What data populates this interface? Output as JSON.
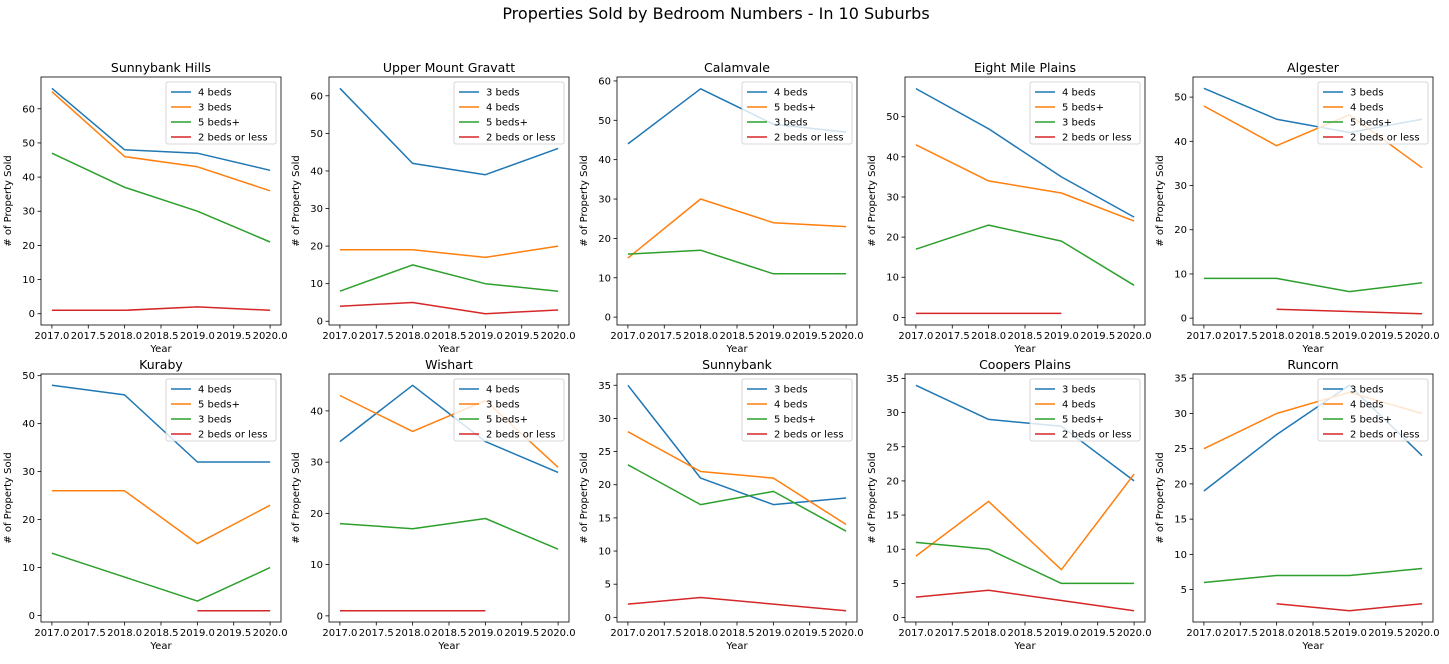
{
  "figure_title": "Properties Sold by Bedroom Numbers - In 10 Suburbs",
  "colors": {
    "C0": "#1f77b4",
    "C1": "#ff7f0e",
    "C2": "#2ca02c",
    "C3": "#d62728"
  },
  "chart_data": [
    {
      "type": "line",
      "title": "Sunnybank Hills",
      "xlabel": "Year",
      "ylabel": "# of Property Sold",
      "x": [
        2017,
        2018,
        2019,
        2020
      ],
      "xlim": [
        2016.85,
        2020.15
      ],
      "ylim": [
        -3.3,
        69.3
      ],
      "xticks": [
        "2017.0",
        "2017.5",
        "2018.0",
        "2018.5",
        "2019.0",
        "2019.5",
        "2020.0"
      ],
      "yticks": [
        0,
        10,
        20,
        30,
        40,
        50,
        60
      ],
      "legend": "top-right",
      "series": [
        {
          "name": "4 beds",
          "color": "#1f77b4",
          "values": [
            66,
            48,
            47,
            42
          ]
        },
        {
          "name": "3 beds",
          "color": "#ff7f0e",
          "values": [
            65,
            46,
            43,
            36
          ]
        },
        {
          "name": "5 beds+",
          "color": "#2ca02c",
          "values": [
            47,
            37,
            30,
            21
          ]
        },
        {
          "name": "2 beds or less",
          "color": "#d62728",
          "values": [
            1,
            1,
            2,
            1
          ]
        }
      ]
    },
    {
      "type": "line",
      "title": "Upper Mount Gravatt",
      "xlabel": "Year",
      "ylabel": "# of Property Sold",
      "x": [
        2017,
        2018,
        2019,
        2020
      ],
      "xlim": [
        2016.85,
        2020.15
      ],
      "ylim": [
        -1.0,
        65.0
      ],
      "xticks": [
        "2017.0",
        "2017.5",
        "2018.0",
        "2018.5",
        "2019.0",
        "2019.5",
        "2020.0"
      ],
      "yticks": [
        0,
        10,
        20,
        30,
        40,
        50,
        60
      ],
      "legend": "top-right",
      "series": [
        {
          "name": "3 beds",
          "color": "#1f77b4",
          "values": [
            62,
            42,
            39,
            46
          ]
        },
        {
          "name": "4 beds",
          "color": "#ff7f0e",
          "values": [
            19,
            19,
            17,
            20
          ]
        },
        {
          "name": "5 beds+",
          "color": "#2ca02c",
          "values": [
            8,
            15,
            10,
            8
          ]
        },
        {
          "name": "2 beds or less",
          "color": "#d62728",
          "values": [
            4,
            5,
            2,
            3
          ]
        }
      ]
    },
    {
      "type": "line",
      "title": "Calamvale",
      "xlabel": "Year",
      "ylabel": "# of Property Sold",
      "x": [
        2017,
        2018,
        2019,
        2020
      ],
      "xlim": [
        2016.85,
        2020.15
      ],
      "ylim": [
        -2.0,
        61.0
      ],
      "xticks": [
        "2017.0",
        "2017.5",
        "2018.0",
        "2018.5",
        "2019.0",
        "2019.5",
        "2020.0"
      ],
      "yticks": [
        0,
        10,
        20,
        30,
        40,
        50,
        60
      ],
      "legend": "top-right",
      "series": [
        {
          "name": "4 beds",
          "color": "#1f77b4",
          "values": [
            44,
            58,
            49,
            47
          ]
        },
        {
          "name": "5 beds+",
          "color": "#ff7f0e",
          "values": [
            15,
            30,
            24,
            23
          ]
        },
        {
          "name": "3 beds",
          "color": "#2ca02c",
          "values": [
            16,
            17,
            11,
            11
          ]
        },
        {
          "name": "2 beds or less",
          "color": "#d62728",
          "values": [
            null,
            null,
            null,
            null
          ]
        }
      ]
    },
    {
      "type": "line",
      "title": "Eight Mile Plains",
      "xlabel": "Year",
      "ylabel": "# of Property Sold",
      "x": [
        2017,
        2018,
        2019,
        2020
      ],
      "xlim": [
        2016.85,
        2020.15
      ],
      "ylim": [
        -1.9,
        59.9
      ],
      "xticks": [
        "2017.0",
        "2017.5",
        "2018.0",
        "2018.5",
        "2019.0",
        "2019.5",
        "2020.0"
      ],
      "yticks": [
        0,
        10,
        20,
        30,
        40,
        50
      ],
      "legend": "top-right",
      "series": [
        {
          "name": "4 beds",
          "color": "#1f77b4",
          "values": [
            57,
            47,
            35,
            25
          ]
        },
        {
          "name": "5 beds+",
          "color": "#ff7f0e",
          "values": [
            43,
            34,
            31,
            24
          ]
        },
        {
          "name": "3 beds",
          "color": "#2ca02c",
          "values": [
            17,
            23,
            19,
            8
          ]
        },
        {
          "name": "2 beds or less",
          "color": "#d62728",
          "values": [
            1,
            1,
            1,
            null
          ]
        }
      ]
    },
    {
      "type": "line",
      "title": "Algester",
      "xlabel": "Year",
      "ylabel": "# of Property Sold",
      "x": [
        2017,
        2018,
        2019,
        2020
      ],
      "xlim": [
        2016.85,
        2020.15
      ],
      "ylim": [
        -1.55,
        54.55
      ],
      "xticks": [
        "2017.0",
        "2017.5",
        "2018.0",
        "2018.5",
        "2019.0",
        "2019.5",
        "2020.0"
      ],
      "yticks": [
        0,
        10,
        20,
        30,
        40,
        50
      ],
      "legend": "top-right",
      "series": [
        {
          "name": "3 beds",
          "color": "#1f77b4",
          "values": [
            52,
            45,
            42,
            45
          ]
        },
        {
          "name": "4 beds",
          "color": "#ff7f0e",
          "values": [
            48,
            39,
            46,
            34
          ]
        },
        {
          "name": "5 beds+",
          "color": "#2ca02c",
          "values": [
            9,
            9,
            6,
            8
          ]
        },
        {
          "name": "2 beds or less",
          "color": "#d62728",
          "values": [
            null,
            2,
            1.5,
            1
          ]
        }
      ]
    },
    {
      "type": "line",
      "title": "Kuraby",
      "xlabel": "Year",
      "ylabel": "# of Property Sold",
      "x": [
        2017,
        2018,
        2019,
        2020
      ],
      "xlim": [
        2016.85,
        2020.15
      ],
      "ylim": [
        -1.35,
        50.35
      ],
      "xticks": [
        "2017.0",
        "2017.5",
        "2018.0",
        "2018.5",
        "2019.0",
        "2019.5",
        "2020.0"
      ],
      "yticks": [
        0,
        10,
        20,
        30,
        40,
        50
      ],
      "legend": "top-right",
      "series": [
        {
          "name": "4 beds",
          "color": "#1f77b4",
          "values": [
            48,
            46,
            32,
            32
          ]
        },
        {
          "name": "5 beds+",
          "color": "#ff7f0e",
          "values": [
            26,
            26,
            15,
            23
          ]
        },
        {
          "name": "3 beds",
          "color": "#2ca02c",
          "values": [
            13,
            8,
            3,
            10
          ]
        },
        {
          "name": "2 beds or less",
          "color": "#d62728",
          "values": [
            null,
            null,
            1,
            1
          ]
        }
      ]
    },
    {
      "type": "line",
      "title": "Wishart",
      "xlabel": "Year",
      "ylabel": "# of Property Sold",
      "x": [
        2017,
        2018,
        2019,
        2020
      ],
      "xlim": [
        2016.85,
        2020.15
      ],
      "ylim": [
        -1.2,
        47.2
      ],
      "xticks": [
        "2017.0",
        "2017.5",
        "2018.0",
        "2018.5",
        "2019.0",
        "2019.5",
        "2020.0"
      ],
      "yticks": [
        0,
        10,
        20,
        30,
        40
      ],
      "legend": "top-right",
      "series": [
        {
          "name": "4 beds",
          "color": "#1f77b4",
          "values": [
            34,
            45,
            34,
            28
          ]
        },
        {
          "name": "3 beds",
          "color": "#ff7f0e",
          "values": [
            43,
            36,
            42,
            29
          ]
        },
        {
          "name": "5 beds+",
          "color": "#2ca02c",
          "values": [
            18,
            17,
            19,
            13
          ]
        },
        {
          "name": "2 beds or less",
          "color": "#d62728",
          "values": [
            1,
            1,
            1,
            null
          ]
        }
      ]
    },
    {
      "type": "line",
      "title": "Sunnybank",
      "xlabel": "Year",
      "ylabel": "# of Property Sold",
      "x": [
        2017,
        2018,
        2019,
        2020
      ],
      "xlim": [
        2016.85,
        2020.15
      ],
      "ylim": [
        -0.7,
        36.7
      ],
      "xticks": [
        "2017.0",
        "2017.5",
        "2018.0",
        "2018.5",
        "2019.0",
        "2019.5",
        "2020.0"
      ],
      "yticks": [
        0,
        5,
        10,
        15,
        20,
        25,
        30,
        35
      ],
      "legend": "top-right",
      "series": [
        {
          "name": "3 beds",
          "color": "#1f77b4",
          "values": [
            35,
            21,
            17,
            18
          ]
        },
        {
          "name": "4 beds",
          "color": "#ff7f0e",
          "values": [
            28,
            22,
            21,
            14
          ]
        },
        {
          "name": "5 beds+",
          "color": "#2ca02c",
          "values": [
            23,
            17,
            19,
            13
          ]
        },
        {
          "name": "2 beds or less",
          "color": "#d62728",
          "values": [
            2,
            3,
            2,
            1
          ]
        }
      ]
    },
    {
      "type": "line",
      "title": "Coopers Plains",
      "xlabel": "Year",
      "ylabel": "# of Property Sold",
      "x": [
        2017,
        2018,
        2019,
        2020
      ],
      "xlim": [
        2016.85,
        2020.15
      ],
      "ylim": [
        -0.65,
        35.65
      ],
      "xticks": [
        "2017.0",
        "2017.5",
        "2018.0",
        "2018.5",
        "2019.0",
        "2019.5",
        "2020.0"
      ],
      "yticks": [
        0,
        5,
        10,
        15,
        20,
        25,
        30,
        35
      ],
      "legend": "top-right",
      "series": [
        {
          "name": "3 beds",
          "color": "#1f77b4",
          "values": [
            34,
            29,
            28,
            20
          ]
        },
        {
          "name": "4 beds",
          "color": "#ff7f0e",
          "values": [
            9,
            17,
            7,
            21
          ]
        },
        {
          "name": "5 beds+",
          "color": "#2ca02c",
          "values": [
            11,
            10,
            5,
            5
          ]
        },
        {
          "name": "2 beds or less",
          "color": "#d62728",
          "values": [
            3,
            4,
            2.5,
            1
          ]
        }
      ]
    },
    {
      "type": "line",
      "title": "Runcorn",
      "xlabel": "Year",
      "ylabel": "# of Property Sold",
      "x": [
        2017,
        2018,
        2019,
        2020
      ],
      "xlim": [
        2016.85,
        2020.15
      ],
      "ylim": [
        0.4,
        35.6
      ],
      "xticks": [
        "2017.0",
        "2017.5",
        "2018.0",
        "2018.5",
        "2019.0",
        "2019.5",
        "2020.0"
      ],
      "yticks": [
        5,
        10,
        15,
        20,
        25,
        30,
        35
      ],
      "legend": "top-right",
      "series": [
        {
          "name": "3 beds",
          "color": "#1f77b4",
          "values": [
            19,
            27,
            34,
            24
          ]
        },
        {
          "name": "4 beds",
          "color": "#ff7f0e",
          "values": [
            25,
            30,
            33,
            30
          ]
        },
        {
          "name": "5 beds+",
          "color": "#2ca02c",
          "values": [
            6,
            7,
            7,
            8
          ]
        },
        {
          "name": "2 beds or less",
          "color": "#d62728",
          "values": [
            null,
            3,
            2,
            3
          ]
        }
      ]
    }
  ]
}
